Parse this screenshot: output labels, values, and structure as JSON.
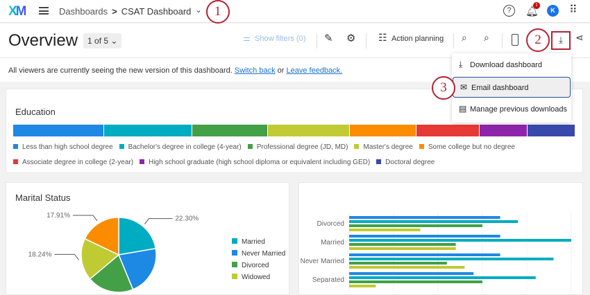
{
  "header": {
    "logo": "XM",
    "breadcrumb_root": "Dashboards",
    "breadcrumb_sep": ">",
    "dashboard": "CSAT Dashboard",
    "notification_count": "1",
    "avatar": "K"
  },
  "toolbar": {
    "title": "Overview",
    "pager": "1 of 5",
    "show_filters": "Show filters (0)",
    "action_planning": "Action planning"
  },
  "notice": {
    "text": "All viewers are currently seeing the new version of this dashboard.",
    "switch_back": "Switch back",
    "or": "or",
    "feedback": "Leave feedback."
  },
  "annotations": [
    "1",
    "2",
    "3"
  ],
  "download_menu": {
    "items": [
      {
        "label": "Download dashboard",
        "icon": "download-icon"
      },
      {
        "label": "Email dashboard",
        "icon": "mail-icon",
        "selected": true
      },
      {
        "label": "Manage previous downloads",
        "icon": "stack-icon"
      }
    ]
  },
  "chart_data": [
    {
      "type": "bar",
      "title": "Education",
      "stacked": true,
      "orientation": "horizontal",
      "categories": [
        "Less than high school degree",
        "Bachelor's degree in college (4-year)",
        "Professional degree (JD, MD)",
        "Master's degree",
        "Some college but no degree",
        "Associate degree in college (2-year)",
        "High school graduate (high school diploma or equivalent including GED)",
        "Doctoral degree"
      ],
      "values": [
        16.2,
        15.6,
        13.5,
        14.6,
        11.8,
        11.3,
        8.5,
        8.5
      ],
      "colors": [
        "#1e88e5",
        "#00acc1",
        "#43a047",
        "#c0ca33",
        "#fb8c00",
        "#e53935",
        "#8e24aa",
        "#3949ab"
      ],
      "legend": "bottom"
    },
    {
      "type": "pie",
      "title": "Marital Status",
      "slices": [
        {
          "name": "Married",
          "value": 22.3,
          "label": "22.30%",
          "color": "#00acc1"
        },
        {
          "name": "Never Married",
          "value": 21.5,
          "color": "#1e88e5"
        },
        {
          "name": "Divorced",
          "value": 20.05,
          "color": "#43a047"
        },
        {
          "name": "Widowed",
          "value": 18.24,
          "label": "18.24%",
          "color": "#c0ca33"
        },
        {
          "value": 17.91,
          "label": "17.91%",
          "color": "#fb8c00"
        }
      ],
      "legend": "right"
    },
    {
      "type": "bar",
      "orientation": "horizontal",
      "categories": [
        "Divorced",
        "Married",
        "Never Married",
        "Separated"
      ],
      "series": [
        {
          "values": [
            3.4,
            3.4,
            3.4,
            2.8
          ],
          "color": "#1e88e5"
        },
        {
          "values": [
            3.8,
            5.0,
            4.6,
            4.2
          ],
          "color": "#00acc1"
        },
        {
          "values": [
            3.0,
            2.4,
            2.2,
            3.0
          ],
          "color": "#43a047"
        },
        {
          "values": [
            1.6,
            2.4,
            2.6,
            0.6
          ],
          "color": "#c0ca33"
        }
      ],
      "xlim": [
        0,
        5
      ],
      "grid": true
    }
  ]
}
